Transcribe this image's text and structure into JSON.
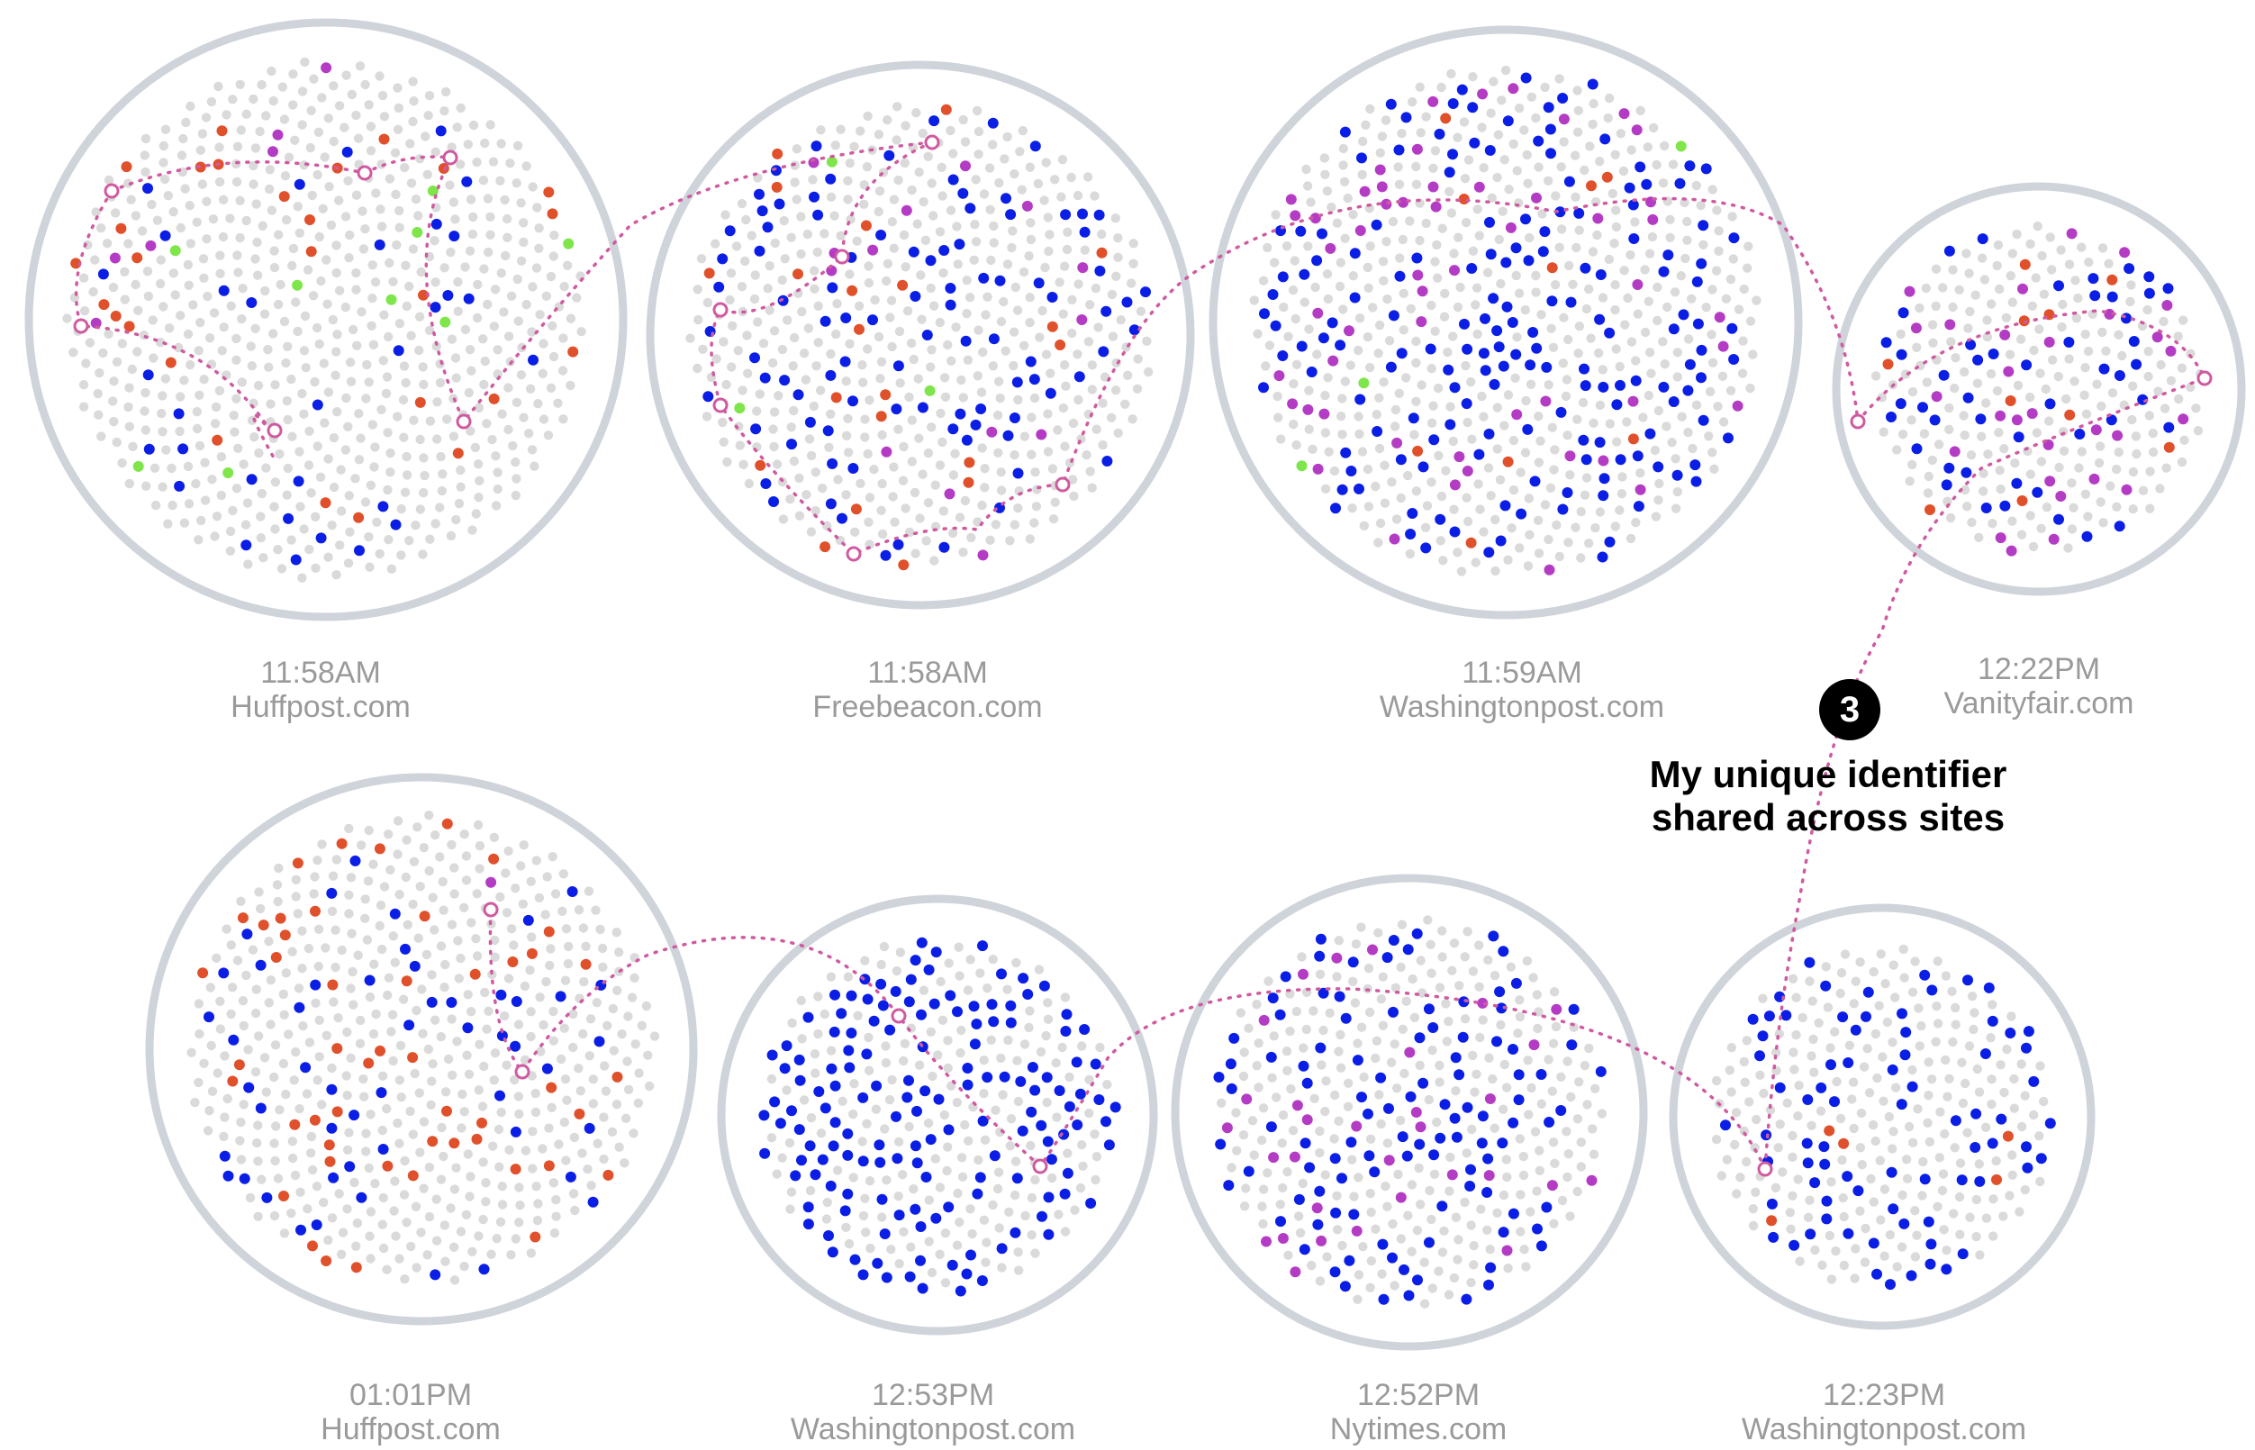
{
  "colors": {
    "ring": "#cfd3da",
    "dot_gray": "#dadada",
    "dot_blue": "#0a1ee6",
    "dot_orange": "#e0502a",
    "dot_magenta": "#b43cc4",
    "dot_green": "#7ee64a",
    "path": "#d05aa0"
  },
  "sites": [
    {
      "time": "11:58AM",
      "domain": "Huffpost.com"
    },
    {
      "time": "11:58AM",
      "domain": "Freebeacon.com"
    },
    {
      "time": "11:59AM",
      "domain": "Washingtonpost.com"
    },
    {
      "time": "12:22PM",
      "domain": "Vanityfair.com"
    },
    {
      "time": "01:01PM",
      "domain": "Huffpost.com"
    },
    {
      "time": "12:53PM",
      "domain": "Washingtonpost.com"
    },
    {
      "time": "12:52PM",
      "domain": "Nytimes.com"
    },
    {
      "time": "12:23PM",
      "domain": "Washingtonpost.com"
    }
  ],
  "annotation": {
    "badge": "3",
    "line1": "My unique identifier",
    "line2": "shared across sites"
  }
}
